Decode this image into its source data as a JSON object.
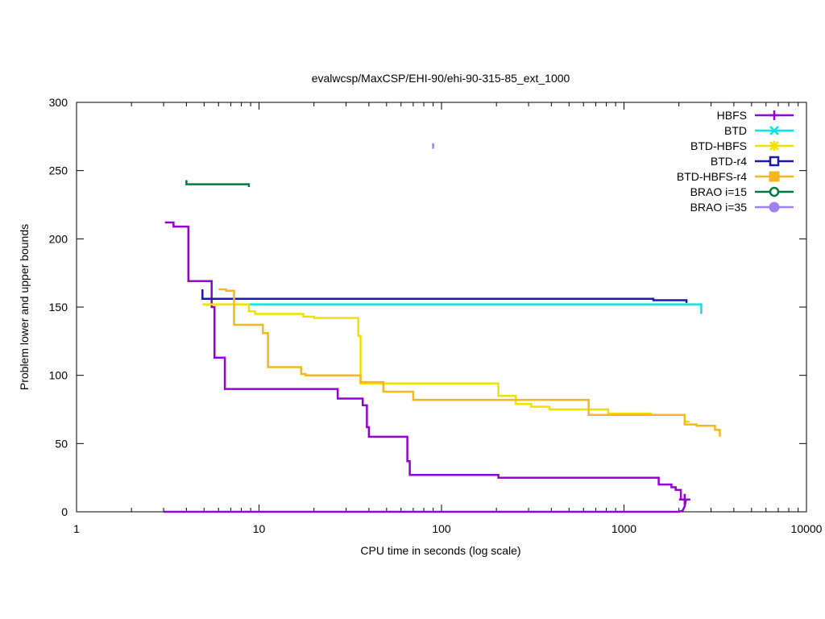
{
  "chart_data": {
    "type": "line",
    "title": "evalwcsp/MaxCSP/EHI-90/ehi-90-315-85_ext_1000",
    "xlabel": "CPU time in seconds (log scale)",
    "ylabel": "Problem lower and upper bounds",
    "x_scale": "log",
    "xlim": [
      1,
      10000
    ],
    "ylim": [
      0,
      300
    ],
    "x_ticks": [
      1,
      10,
      100,
      1000,
      10000
    ],
    "x_tick_labels": [
      "1",
      "10",
      "100",
      "1000",
      "10000"
    ],
    "y_ticks": [
      0,
      50,
      100,
      150,
      200,
      250,
      300
    ],
    "y_tick_labels": [
      "0",
      "50",
      "100",
      "150",
      "200",
      "250",
      "300"
    ],
    "grid": false,
    "legend_position": "top-right",
    "series": [
      {
        "name": "HBFS",
        "color": "#9400d3",
        "marker": "plus",
        "end_marker": [
          2150,
          9
        ],
        "upper": [
          [
            3.05,
            212
          ],
          [
            3.4,
            212
          ],
          [
            3.4,
            209
          ],
          [
            4.1,
            209
          ],
          [
            4.1,
            169
          ],
          [
            5.5,
            169
          ],
          [
            5.5,
            150
          ],
          [
            5.7,
            150
          ],
          [
            5.7,
            113
          ],
          [
            6.5,
            113
          ],
          [
            6.5,
            90
          ],
          [
            27,
            90
          ],
          [
            27,
            83
          ],
          [
            37,
            83
          ],
          [
            37,
            78
          ],
          [
            39,
            78
          ],
          [
            39,
            62
          ],
          [
            40,
            62
          ],
          [
            40,
            55
          ],
          [
            65,
            55
          ],
          [
            65,
            37
          ],
          [
            67,
            37
          ],
          [
            67,
            27
          ],
          [
            205,
            27
          ],
          [
            205,
            25
          ],
          [
            1550,
            25
          ],
          [
            1550,
            20
          ],
          [
            1820,
            20
          ],
          [
            1820,
            18
          ],
          [
            1920,
            18
          ],
          [
            1920,
            16
          ],
          [
            2050,
            16
          ],
          [
            2050,
            9
          ],
          [
            2250,
            9
          ]
        ],
        "lower": [
          [
            3.0,
            0
          ],
          [
            2000,
            0
          ],
          [
            2100,
            1
          ],
          [
            2150,
            4
          ],
          [
            2180,
            8
          ],
          [
            2200,
            9
          ]
        ]
      },
      {
        "name": "BTD",
        "color": "#00e5e5",
        "marker": "cross",
        "upper": [
          [
            8.8,
            152
          ],
          [
            2650,
            152
          ],
          [
            2650,
            145
          ]
        ],
        "lower": []
      },
      {
        "name": "BTD-HBFS",
        "color": "#f0e000",
        "marker": "star",
        "upper": [
          [
            4.9,
            152
          ],
          [
            8.8,
            152
          ],
          [
            8.8,
            147
          ],
          [
            9.5,
            147
          ],
          [
            9.5,
            145
          ],
          [
            17.5,
            145
          ],
          [
            17.5,
            143
          ],
          [
            20,
            143
          ],
          [
            20,
            142
          ],
          [
            35,
            142
          ],
          [
            35,
            129
          ],
          [
            36,
            129
          ],
          [
            36,
            94
          ],
          [
            205,
            94
          ],
          [
            205,
            85
          ],
          [
            255,
            85
          ],
          [
            255,
            79
          ],
          [
            310,
            79
          ],
          [
            310,
            77
          ],
          [
            390,
            77
          ],
          [
            390,
            75
          ],
          [
            820,
            75
          ],
          [
            820,
            72
          ],
          [
            1400,
            72
          ],
          [
            1400,
            71
          ],
          [
            2150,
            71
          ],
          [
            2150,
            66
          ],
          [
            2300,
            66
          ]
        ],
        "lower": []
      },
      {
        "name": "BTD-r4",
        "color": "#1a1aaa",
        "marker": "square",
        "upper": [
          [
            4.9,
            163
          ],
          [
            4.9,
            156
          ],
          [
            1450,
            156
          ],
          [
            1450,
            155
          ],
          [
            2200,
            155
          ],
          [
            2200,
            153
          ]
        ],
        "lower": []
      },
      {
        "name": "BTD-HBFS-r4",
        "color": "#f5b71e",
        "marker": "filled-square",
        "upper": [
          [
            6.0,
            163
          ],
          [
            6.6,
            163
          ],
          [
            6.6,
            162
          ],
          [
            7.3,
            162
          ],
          [
            7.3,
            137
          ],
          [
            10.5,
            137
          ],
          [
            10.5,
            131
          ],
          [
            11.2,
            131
          ],
          [
            11.2,
            106
          ],
          [
            17,
            106
          ],
          [
            17,
            101
          ],
          [
            18,
            101
          ],
          [
            18,
            100
          ],
          [
            36,
            100
          ],
          [
            36,
            95
          ],
          [
            48,
            95
          ],
          [
            48,
            88
          ],
          [
            70,
            88
          ],
          [
            70,
            82
          ],
          [
            640,
            82
          ],
          [
            640,
            71
          ],
          [
            2150,
            71
          ],
          [
            2150,
            64
          ],
          [
            2500,
            64
          ],
          [
            2500,
            63
          ],
          [
            3150,
            63
          ],
          [
            3150,
            60
          ],
          [
            3350,
            60
          ],
          [
            3350,
            55
          ]
        ],
        "lower": []
      },
      {
        "name": "BRAO i=15",
        "color": "#007a3d",
        "marker": "circle",
        "upper": [
          [
            4.0,
            243
          ],
          [
            4.0,
            240
          ],
          [
            8.8,
            240
          ],
          [
            8.8,
            238
          ]
        ],
        "lower": []
      },
      {
        "name": "BRAO i=35",
        "color": "#a080f0",
        "marker": "filled-circle",
        "upper": [
          [
            90,
            270
          ],
          [
            90,
            266
          ]
        ],
        "lower": []
      }
    ]
  }
}
